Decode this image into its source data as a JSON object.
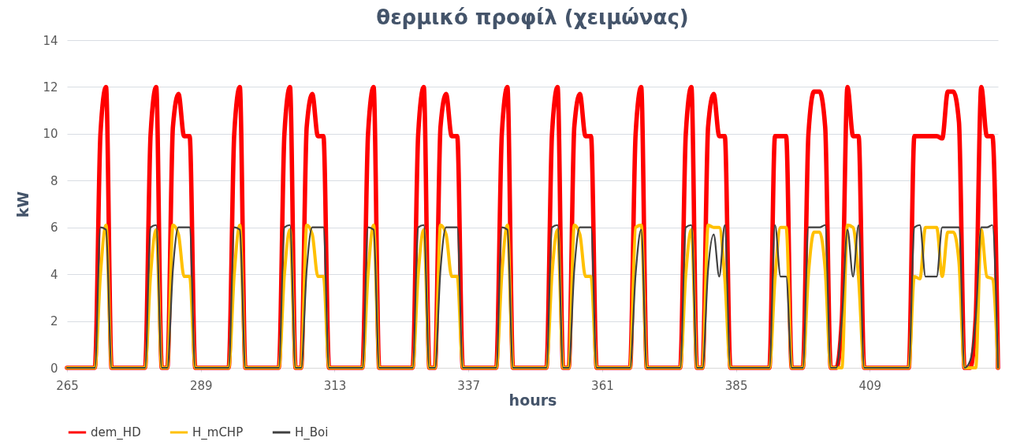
{
  "chart_data": {
    "type": "line",
    "title": "θερμικό προφίλ (χειμώνας)",
    "xlabel": "hours",
    "ylabel": "kW",
    "x": [
      265,
      266,
      267,
      268,
      269,
      270,
      271,
      272,
      273,
      274,
      275,
      276,
      277,
      278,
      279,
      280,
      281,
      282,
      283,
      284,
      285,
      286,
      287,
      288,
      289,
      290,
      291,
      292,
      293,
      294,
      295,
      296,
      297,
      298,
      299,
      300,
      301,
      302,
      303,
      304,
      305,
      306,
      307,
      308,
      309,
      310,
      311,
      312,
      313,
      314,
      315,
      316,
      317,
      318,
      319,
      320,
      321,
      322,
      323,
      324,
      325,
      326,
      327,
      328,
      329,
      330,
      331,
      332,
      333,
      334,
      335,
      336,
      337,
      338,
      339,
      340,
      341,
      342,
      343,
      344,
      345,
      346,
      347,
      348,
      349,
      350,
      351,
      352,
      353,
      354,
      355,
      356,
      357,
      358,
      359,
      360,
      361,
      362,
      363,
      364,
      365,
      366,
      367,
      368,
      369,
      370,
      371,
      372,
      373,
      374,
      375,
      376,
      377,
      378,
      379,
      380,
      381,
      382,
      383,
      384,
      385,
      386,
      387,
      388,
      389,
      390,
      391,
      392,
      393,
      394,
      395,
      396,
      397,
      398,
      399,
      400,
      401,
      402,
      403,
      404,
      405,
      406,
      407,
      408,
      409,
      410,
      411,
      412,
      413,
      414,
      415,
      416,
      417,
      418,
      419,
      420,
      421,
      422,
      423,
      424,
      425,
      426,
      427,
      428,
      429,
      430,
      431,
      432
    ],
    "xlim": [
      265,
      432
    ],
    "xticks": [
      265,
      289,
      313,
      337,
      361,
      385,
      409
    ],
    "ylim": [
      0,
      14
    ],
    "yticks": [
      0,
      2,
      4,
      6,
      8,
      10,
      12,
      14
    ],
    "grid": "y",
    "legend": "bottom",
    "line_style": "solid",
    "series": [
      {
        "name": "dem_HD",
        "color": "#ff0000",
        "values": [
          0,
          0,
          0,
          0,
          0,
          0,
          10,
          12,
          0,
          0,
          0,
          0,
          0,
          0,
          0,
          10,
          12,
          0,
          0,
          10.3,
          11.7,
          9.9,
          9.9,
          0,
          0,
          0,
          0,
          0,
          0,
          0,
          10,
          12,
          0,
          0,
          0,
          0,
          0,
          0,
          0,
          10,
          12,
          0,
          0,
          10.3,
          11.7,
          9.9,
          9.9,
          0,
          0,
          0,
          0,
          0,
          0,
          0,
          10,
          12,
          0,
          0,
          0,
          0,
          0,
          0,
          0,
          10,
          12,
          0,
          0,
          10.3,
          11.7,
          9.9,
          9.9,
          0,
          0,
          0,
          0,
          0,
          0,
          0,
          10,
          12,
          0,
          0,
          0,
          0,
          0,
          0,
          0,
          10,
          12,
          0,
          0,
          10.3,
          11.7,
          9.9,
          9.9,
          0,
          0,
          0,
          0,
          0,
          0,
          0,
          10,
          12,
          0,
          0,
          0,
          0,
          0,
          0,
          0,
          10,
          12,
          0,
          0,
          10.3,
          11.7,
          9.9,
          9.9,
          0,
          0,
          0,
          0,
          0,
          0,
          0,
          0,
          9.9,
          9.9,
          9.9,
          0,
          0,
          0,
          10,
          11.8,
          11.8,
          10.3,
          0,
          0,
          2.1,
          12,
          9.9,
          9.9,
          0,
          0,
          0,
          0,
          0,
          0,
          0,
          0,
          0,
          9.9,
          9.9,
          9.9,
          9.9,
          9.9,
          9.8,
          11.8,
          11.8,
          10.5,
          0,
          0,
          2.1,
          12,
          9.9,
          9.9,
          0
        ]
      },
      {
        "name": "H_mCHP",
        "color": "#ffc000",
        "values": [
          0,
          0,
          0,
          0,
          0,
          0,
          4,
          6.1,
          0,
          0,
          0,
          0,
          0,
          0,
          0,
          4,
          5.9,
          0,
          0,
          6.1,
          5.7,
          3.9,
          3.9,
          0,
          0,
          0,
          0,
          0,
          0,
          0,
          4,
          6.1,
          0,
          0,
          0,
          0,
          0,
          0,
          0,
          4,
          5.9,
          0,
          0,
          6.1,
          5.7,
          3.9,
          3.9,
          0,
          0,
          0,
          0,
          0,
          0,
          0,
          4,
          6.1,
          0,
          0,
          0,
          0,
          0,
          0,
          0,
          4,
          5.9,
          0,
          0,
          6.1,
          5.7,
          3.9,
          3.9,
          0,
          0,
          0,
          0,
          0,
          0,
          0,
          4,
          6.1,
          0,
          0,
          0,
          0,
          0,
          0,
          0,
          4,
          5.9,
          0,
          0,
          6.1,
          5.7,
          3.9,
          3.9,
          0,
          0,
          0,
          0,
          0,
          0,
          0,
          6,
          6.1,
          0,
          0,
          0,
          0,
          0,
          0,
          0,
          4,
          5.9,
          0,
          0,
          6.1,
          6,
          6,
          3.8,
          0,
          0,
          0,
          0,
          0,
          0,
          0,
          0,
          3.8,
          6,
          6,
          0,
          0,
          0,
          4,
          5.8,
          5.8,
          4.2,
          0,
          0,
          0,
          6.1,
          6,
          3.8,
          0,
          0,
          0,
          0,
          0,
          0,
          0,
          0,
          0,
          3.9,
          3.8,
          6,
          6,
          6,
          3.9,
          5.8,
          5.8,
          4.5,
          0,
          0,
          0,
          5.9,
          3.9,
          3.8,
          0
        ]
      },
      {
        "name": "H_Boi",
        "color": "#404040",
        "values": [
          0,
          0,
          0,
          0,
          0,
          0,
          6,
          5.9,
          0,
          0,
          0,
          0,
          0,
          0,
          0,
          6,
          6.1,
          0,
          0,
          4.2,
          6,
          6,
          6,
          0,
          0,
          0,
          0,
          0,
          0,
          0,
          6,
          5.9,
          0,
          0,
          0,
          0,
          0,
          0,
          0,
          6,
          6.1,
          0,
          0,
          4.2,
          6,
          6,
          6,
          0,
          0,
          0,
          0,
          0,
          0,
          0,
          6,
          5.9,
          0,
          0,
          0,
          0,
          0,
          0,
          0,
          6,
          6.1,
          0,
          0,
          4.2,
          6,
          6,
          6,
          0,
          0,
          0,
          0,
          0,
          0,
          0,
          6,
          5.9,
          0,
          0,
          0,
          0,
          0,
          0,
          0,
          6,
          6.1,
          0,
          0,
          4.2,
          6,
          6,
          6,
          0,
          0,
          0,
          0,
          0,
          0,
          0,
          4,
          5.9,
          0,
          0,
          0,
          0,
          0,
          0,
          0,
          6,
          6.1,
          0,
          0,
          4.2,
          5.7,
          3.9,
          6.1,
          0,
          0,
          0,
          0,
          0,
          0,
          0,
          0,
          6.1,
          3.9,
          3.9,
          0,
          0,
          0,
          6,
          6,
          6,
          6.1,
          0,
          0,
          2.1,
          5.9,
          3.9,
          6.1,
          0,
          0,
          0,
          0,
          0,
          0,
          0,
          0,
          0,
          6,
          6.1,
          3.9,
          3.9,
          3.9,
          6,
          6,
          6,
          6,
          0,
          0.3,
          2.1,
          6,
          6,
          6.1,
          0
        ]
      }
    ]
  }
}
